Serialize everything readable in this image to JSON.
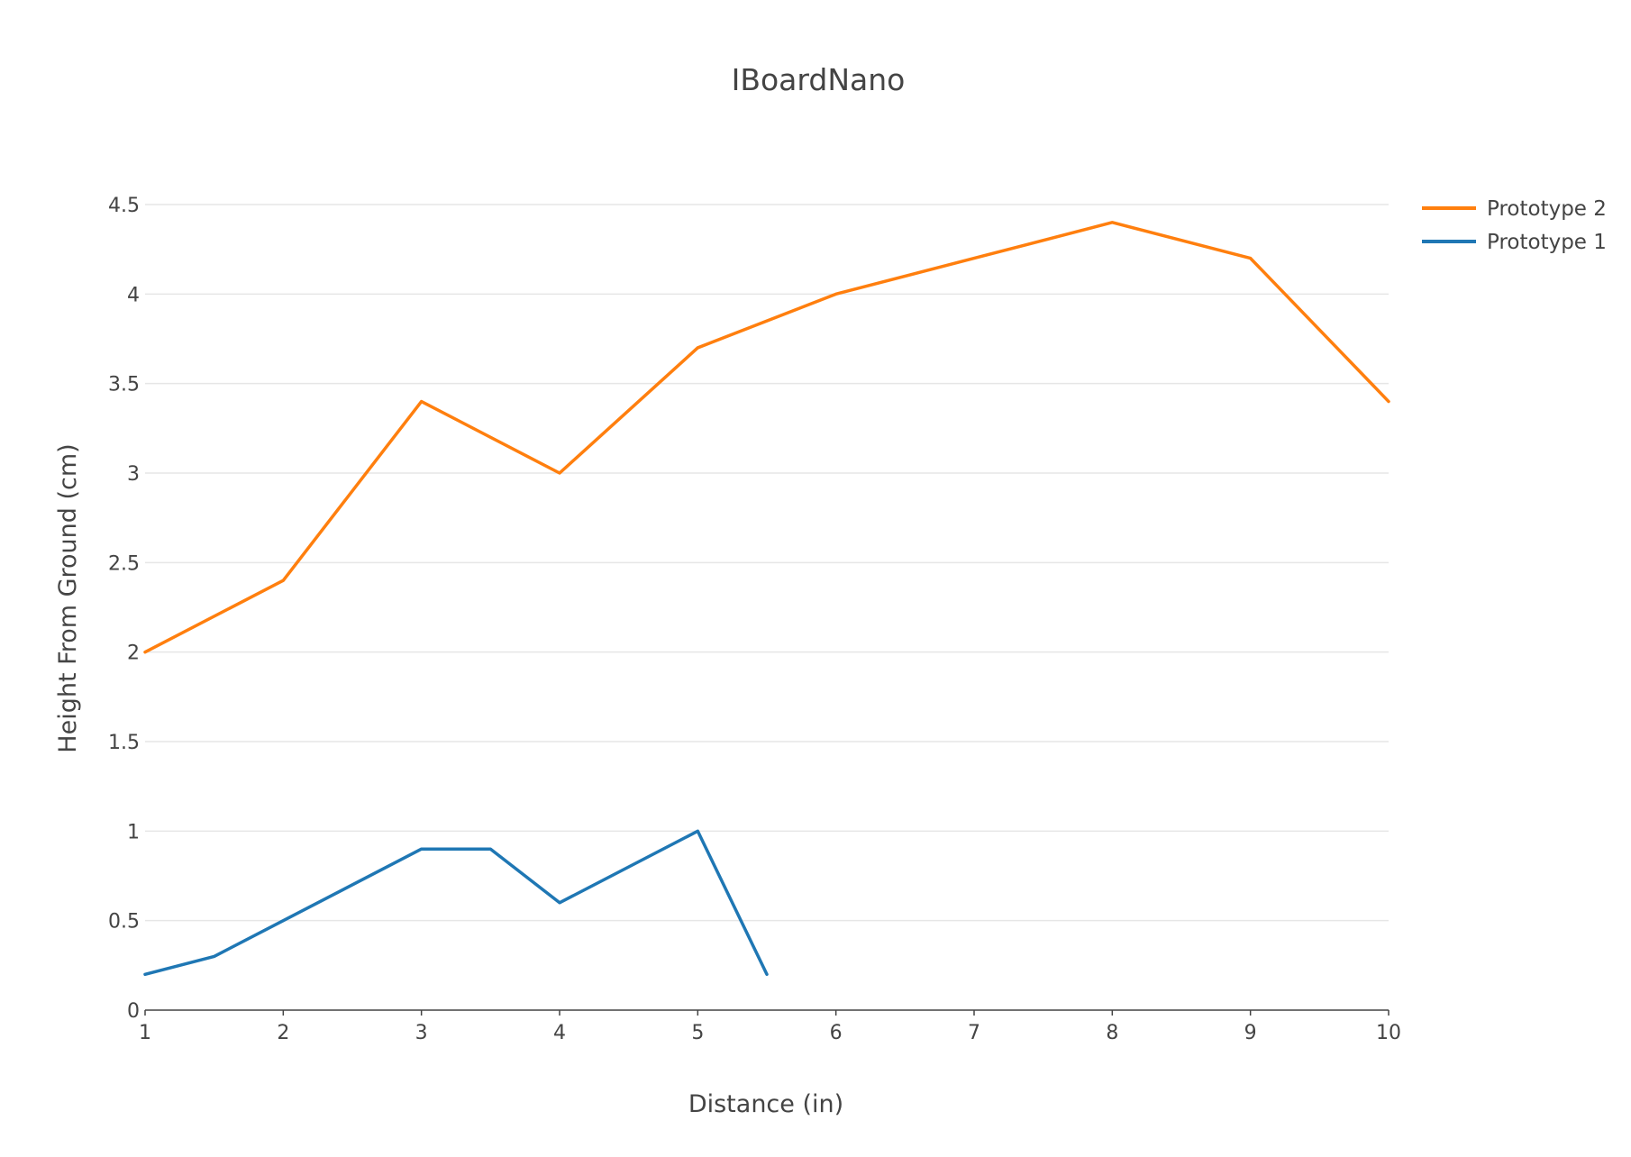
{
  "chart_data": {
    "type": "line",
    "title": "IBoardNano",
    "xlabel": "Distance (in)",
    "ylabel": "Height From Ground (cm)",
    "xlim": [
      1,
      10
    ],
    "ylim": [
      0,
      4.5
    ],
    "grid": true,
    "legend_position": "top-right",
    "x_ticks": [
      1,
      2,
      3,
      4,
      5,
      6,
      7,
      8,
      9,
      10
    ],
    "y_ticks": [
      0,
      0.5,
      1,
      1.5,
      2,
      2.5,
      3,
      3.5,
      4,
      4.5
    ],
    "x_tick_labels": [
      "1",
      "2",
      "3",
      "4",
      "5",
      "6",
      "7",
      "8",
      "9",
      "10"
    ],
    "y_tick_labels": [
      "0",
      "0.5",
      "1",
      "1.5",
      "2",
      "2.5",
      "3",
      "3.5",
      "4",
      "4.5"
    ],
    "series": [
      {
        "name": "Prototype 2",
        "color": "#ff7f0e",
        "x": [
          1,
          2,
          3,
          4,
          5,
          6,
          7,
          8,
          9,
          10
        ],
        "values": [
          2.0,
          2.4,
          3.4,
          3.0,
          3.7,
          4.0,
          4.2,
          4.4,
          4.2,
          3.4
        ]
      },
      {
        "name": "Prototype 1",
        "color": "#1f77b4",
        "x": [
          1,
          1.5,
          2,
          3,
          3.5,
          4,
          5,
          5.5
        ],
        "values": [
          0.2,
          0.3,
          0.5,
          0.9,
          0.9,
          0.6,
          1.0,
          0.2
        ]
      }
    ]
  }
}
